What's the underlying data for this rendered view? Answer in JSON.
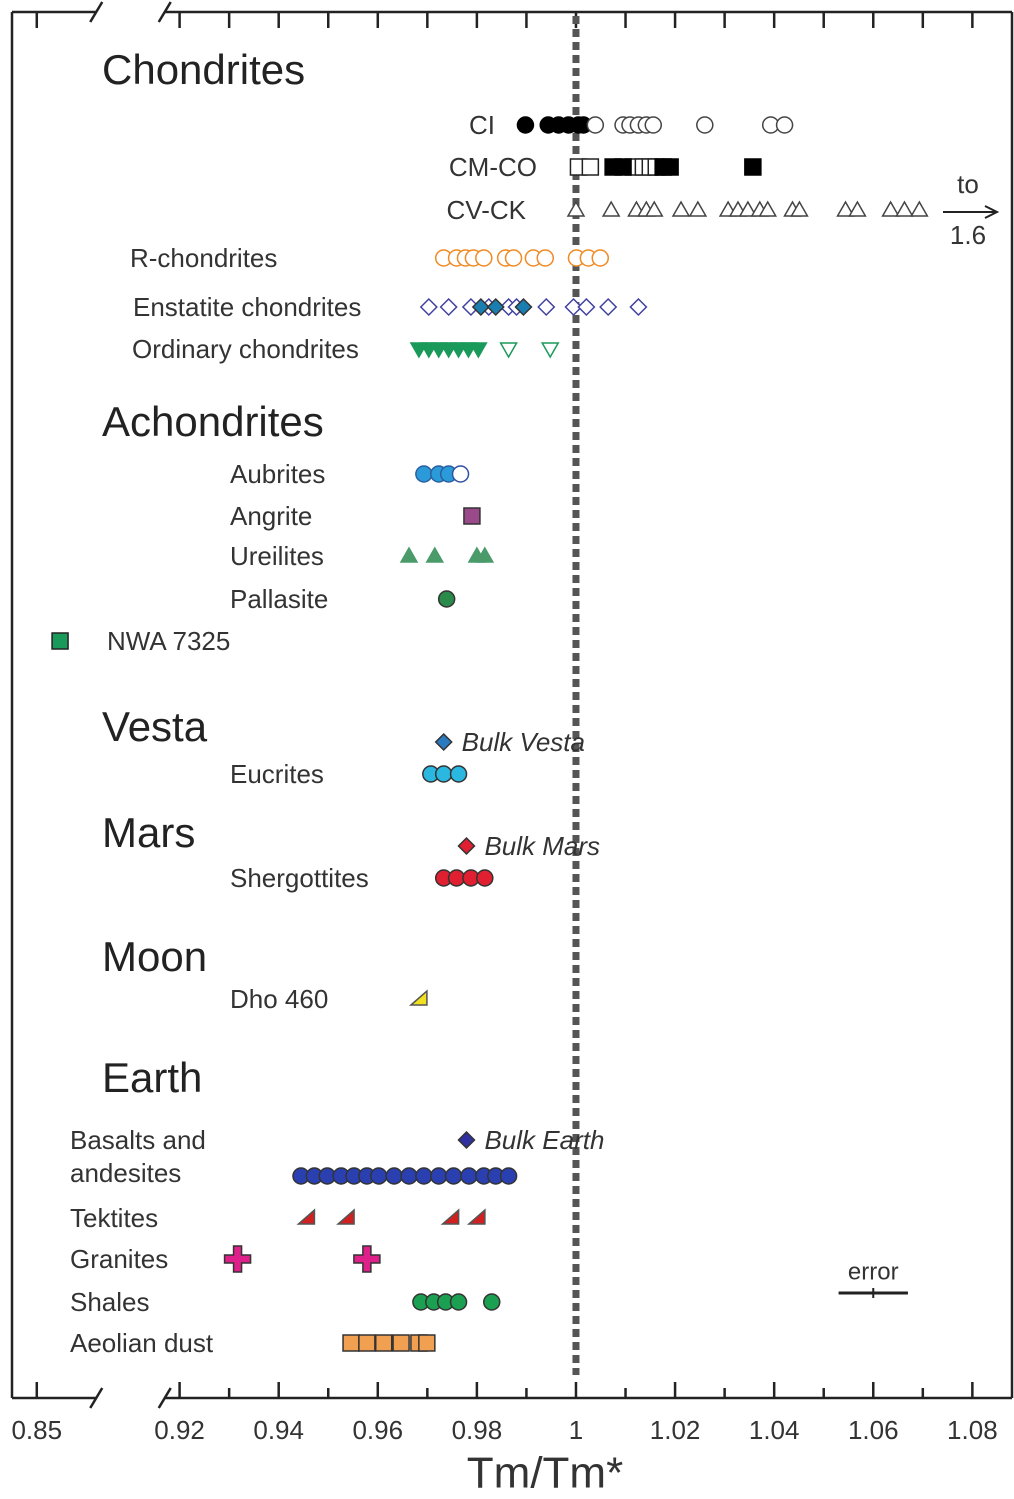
{
  "chart_data": {
    "type": "dot",
    "xlabel": "Tm/Tm*",
    "xlim": [
      0.845,
      1.088
    ],
    "axis_break": [
      0.862,
      0.917
    ],
    "xticks": [
      0.85,
      0.92,
      0.94,
      0.96,
      0.98,
      1,
      1.02,
      1.04,
      1.06,
      1.08
    ],
    "xminorticks": [
      0.93,
      0.95,
      0.97,
      0.99,
      1.01,
      1.03,
      1.05,
      1.07
    ],
    "reference_line": 1,
    "sections": [
      {
        "title": "Chondrites",
        "rows": [
          {
            "name": "CI",
            "marks": [
              {
                "shape": "circle",
                "fill": "#000000",
                "stroke": "#000000",
                "values": [
                  0.9898,
                  0.9944,
                  0.9965,
                  0.9985,
                  1.0005,
                  1.0015
                ]
              },
              {
                "shape": "circle",
                "fill": "#ffffff",
                "stroke": "#444444",
                "values": [
                  1.0039,
                  1.0095,
                  1.0109,
                  1.0126,
                  1.0142,
                  1.0156,
                  1.026,
                  1.0393,
                  1.0421
                ]
              }
            ]
          },
          {
            "name": "CM-CO",
            "marks": [
              {
                "shape": "square",
                "fill": "#ffffff",
                "stroke": "#222222",
                "values": [
                  1.0005,
                  1.0029,
                  1.0116,
                  1.0136,
                  1.015,
                  1.0162
                ]
              },
              {
                "shape": "square",
                "fill": "#000000",
                "stroke": "#000000",
                "values": [
                  1.0075,
                  1.0095,
                  1.0176,
                  1.019,
                  1.0357
                ]
              }
            ]
          },
          {
            "name": "CV-CK",
            "arrow_text": "to",
            "arrow_to": 1.6,
            "marks": [
              {
                "shape": "triangle",
                "fill": "#ffffff",
                "stroke": "#444444",
                "values": [
                  1.0,
                  1.0071,
                  1.0122,
                  1.0142,
                  1.0158,
                  1.0212,
                  1.0246,
                  1.0307,
                  1.0327,
                  1.0347,
                  1.0371,
                  1.0387,
                  1.0437,
                  1.0451,
                  1.0544,
                  1.0568,
                  1.0635,
                  1.0663,
                  1.0693
                ]
              }
            ]
          },
          {
            "name": "R-chondrites",
            "marks": [
              {
                "shape": "circle",
                "fill": "#ffffff",
                "stroke": "#f08a24",
                "values": [
                  0.9733,
                  0.9759,
                  0.9777,
                  0.9793,
                  0.9814,
                  0.9858,
                  0.9874,
                  0.9914,
                  0.9938,
                  1.0001,
                  1.0025,
                  1.0049
                ]
              }
            ]
          },
          {
            "name": "Enstatite chondrites",
            "marks": [
              {
                "shape": "diamond",
                "fill": "#ffffff",
                "stroke": "#4040a0",
                "values": [
                  0.9703,
                  0.9743,
                  0.9788,
                  0.9824,
                  0.9864,
                  0.988,
                  0.994,
                  0.9995,
                  1.0021,
                  1.0065,
                  1.0126
                ]
              },
              {
                "shape": "diamond",
                "fill": "#1a7fb0",
                "stroke": "#333333",
                "values": [
                  0.9808,
                  0.9838,
                  0.9894
                ]
              }
            ]
          },
          {
            "name": "Ordinary chondrites",
            "marks": [
              {
                "shape": "triangle-down",
                "fill": "#1a9a5a",
                "stroke": "#1a9a5a",
                "values": [
                  0.9683,
                  0.9703,
                  0.9723,
                  0.9743,
                  0.9763,
                  0.9783,
                  0.9803
                ]
              },
              {
                "shape": "triangle-down",
                "fill": "#ffffff",
                "stroke": "#1a9a5a",
                "values": [
                  0.9864,
                  0.9948
                ]
              }
            ]
          }
        ]
      },
      {
        "title": "Achondrites",
        "rows": [
          {
            "name": "Aubrites",
            "marks": [
              {
                "shape": "circle",
                "fill": "#2b9ad8",
                "stroke": "#2a60a0",
                "values": [
                  0.9693,
                  0.9723,
                  0.9743
                ]
              },
              {
                "shape": "circle",
                "fill": "#ffffff",
                "stroke": "#3050a0",
                "values": [
                  0.9767
                ]
              }
            ]
          },
          {
            "name": "Angrite",
            "marks": [
              {
                "shape": "square",
                "fill": "#9a4a8a",
                "stroke": "#333333",
                "values": [
                  0.979
                ]
              }
            ]
          },
          {
            "name": "Ureilites",
            "marks": [
              {
                "shape": "triangle",
                "fill": "#4a9a6a",
                "stroke": "#4a9a6a",
                "values": [
                  0.9663,
                  0.9715,
                  0.98,
                  0.9816
                ]
              }
            ]
          },
          {
            "name": "Pallasite",
            "marks": [
              {
                "shape": "circle",
                "fill": "#2a8a4a",
                "stroke": "#333333",
                "values": [
                  0.9739
                ]
              }
            ]
          },
          {
            "name": "NWA 7325",
            "marks": [
              {
                "shape": "square",
                "fill": "#1a9a5a",
                "stroke": "#222222",
                "values": [
                  0.8547
                ]
              }
            ]
          }
        ]
      },
      {
        "title": "Vesta",
        "rows": [
          {
            "name": "Bulk Vesta",
            "label_style": "italic-right",
            "marks": [
              {
                "shape": "diamond",
                "fill": "#2a7ac0",
                "stroke": "#333333",
                "values": [
                  0.9733
                ]
              }
            ]
          },
          {
            "name": "Eucrites",
            "marks": [
              {
                "shape": "circle",
                "fill": "#2ab8e0",
                "stroke": "#333333",
                "values": [
                  0.9707,
                  0.9733,
                  0.9763
                ]
              }
            ]
          }
        ]
      },
      {
        "title": "Mars",
        "rows": [
          {
            "name": "Bulk Mars",
            "label_style": "italic-right",
            "marks": [
              {
                "shape": "diamond",
                "fill": "#e02030",
                "stroke": "#333333",
                "values": [
                  0.9779
                ]
              }
            ]
          },
          {
            "name": "Shergottites",
            "marks": [
              {
                "shape": "circle",
                "fill": "#e02030",
                "stroke": "#333333",
                "values": [
                  0.9733,
                  0.9759,
                  0.9788,
                  0.9816
                ]
              }
            ]
          }
        ]
      },
      {
        "title": "Moon",
        "rows": [
          {
            "name": "Dho 460",
            "marks": [
              {
                "shape": "wedge",
                "fill": "#f0e020",
                "stroke": "#555555",
                "values": [
                  0.9683
                ]
              }
            ]
          }
        ]
      },
      {
        "title": "Earth",
        "rows": [
          {
            "name": "Bulk Earth",
            "label_style": "italic-right",
            "marks": [
              {
                "shape": "diamond",
                "fill": "#3030a0",
                "stroke": "#333333",
                "values": [
                  0.9779
                ]
              }
            ]
          },
          {
            "name": "Basalts and andesites",
            "marks": [
              {
                "shape": "circle",
                "fill": "#2a40b0",
                "stroke": "#333333",
                "values": [
                  0.9445,
                  0.9472,
                  0.9498,
                  0.9526,
                  0.9552,
                  0.9578,
                  0.9602,
                  0.9633,
                  0.9663,
                  0.9693,
                  0.9723,
                  0.9753,
                  0.9784,
                  0.9814,
                  0.9838,
                  0.9864
                ]
              }
            ]
          },
          {
            "name": "Tektites",
            "marks": [
              {
                "shape": "wedge",
                "fill": "#d02020",
                "stroke": "#555555",
                "values": [
                  0.9456,
                  0.9536,
                  0.9747,
                  0.98
                ]
              }
            ]
          },
          {
            "name": "Granites",
            "marks": [
              {
                "shape": "cross",
                "fill": "#e0208a",
                "stroke": "#333333",
                "values": [
                  0.9317,
                  0.9578
                ]
              }
            ]
          },
          {
            "name": "Shales",
            "marks": [
              {
                "shape": "circle",
                "fill": "#1aa050",
                "stroke": "#333333",
                "values": [
                  0.9687,
                  0.9713,
                  0.9737,
                  0.9763,
                  0.983
                ]
              }
            ]
          },
          {
            "name": "Aeolian dust",
            "marks": [
              {
                "shape": "square",
                "fill": "#f0a050",
                "stroke": "#333333",
                "values": [
                  0.9546,
                  0.9578,
                  0.9612,
                  0.9647,
                  0.9683,
                  0.9699
                ]
              }
            ]
          }
        ]
      }
    ],
    "error_bar": {
      "label": "error",
      "value": 1.06,
      "error": 0.007
    }
  }
}
